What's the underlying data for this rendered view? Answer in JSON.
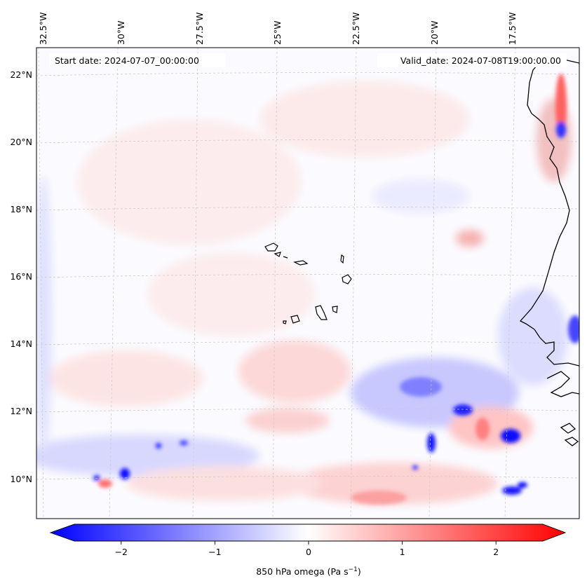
{
  "map": {
    "start_date": "Start date: 2024-07-07_00:00:00",
    "valid_date": "Valid_date: 2024-07-08T19:00:00.00",
    "lon_labels": [
      "32.5°W",
      "30°W",
      "27.5°W",
      "25°W",
      "22.5°W",
      "20°W",
      "17.5°W"
    ],
    "lat_labels": [
      "22°N",
      "20°N",
      "18°N",
      "16°N",
      "14°N",
      "12°N",
      "10°N"
    ],
    "field": "850 hPa omega",
    "colormap": "bwr",
    "colors": {
      "negative": "#0000ff",
      "zero": "#ffffff",
      "positive": "#ff0000",
      "coast": "#000000"
    }
  },
  "colorbar": {
    "ticks": [
      "−2",
      "−1",
      "0",
      "1",
      "2"
    ],
    "tick_values": [
      -2,
      -1,
      0,
      1,
      2
    ],
    "range": [
      -2.5,
      2.5
    ],
    "label": "850 hPa omega (Pa s",
    "label_sup": "−1",
    "label_end": ")"
  }
}
